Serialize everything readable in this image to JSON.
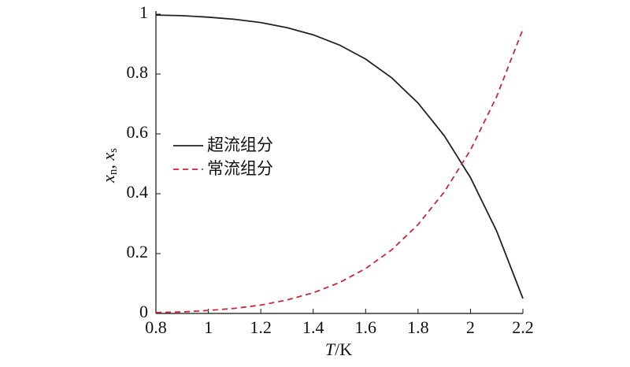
{
  "chart_data": {
    "type": "line",
    "x": [
      0.8,
      0.9,
      1.0,
      1.1,
      1.2,
      1.3,
      1.4,
      1.5,
      1.6,
      1.7,
      1.8,
      1.9,
      2.0,
      2.1,
      2.2
    ],
    "series": [
      {
        "name": "超流组分",
        "color": "#222222",
        "dash": false,
        "values": [
          0.997,
          0.995,
          0.99,
          0.983,
          0.972,
          0.955,
          0.931,
          0.897,
          0.85,
          0.787,
          0.703,
          0.594,
          0.454,
          0.275,
          0.05
        ]
      },
      {
        "name": "常流组分",
        "color": "#c8283a",
        "dash": true,
        "values": [
          0.003,
          0.005,
          0.01,
          0.017,
          0.028,
          0.045,
          0.069,
          0.103,
          0.15,
          0.213,
          0.297,
          0.406,
          0.546,
          0.725,
          0.95
        ]
      }
    ],
    "xlabel": [
      "T",
      "/K"
    ],
    "ylabel": [
      "x",
      "n",
      ", x",
      "s"
    ],
    "xlim": [
      0.8,
      2.2
    ],
    "xticks": [
      0.8,
      1.0,
      1.2,
      1.4,
      1.6,
      1.8,
      2.0,
      2.2
    ],
    "ylim": [
      0,
      1.0
    ],
    "yticks": [
      0,
      0.2,
      0.4,
      0.6,
      0.8,
      1.0
    ],
    "legend": "upper left"
  }
}
